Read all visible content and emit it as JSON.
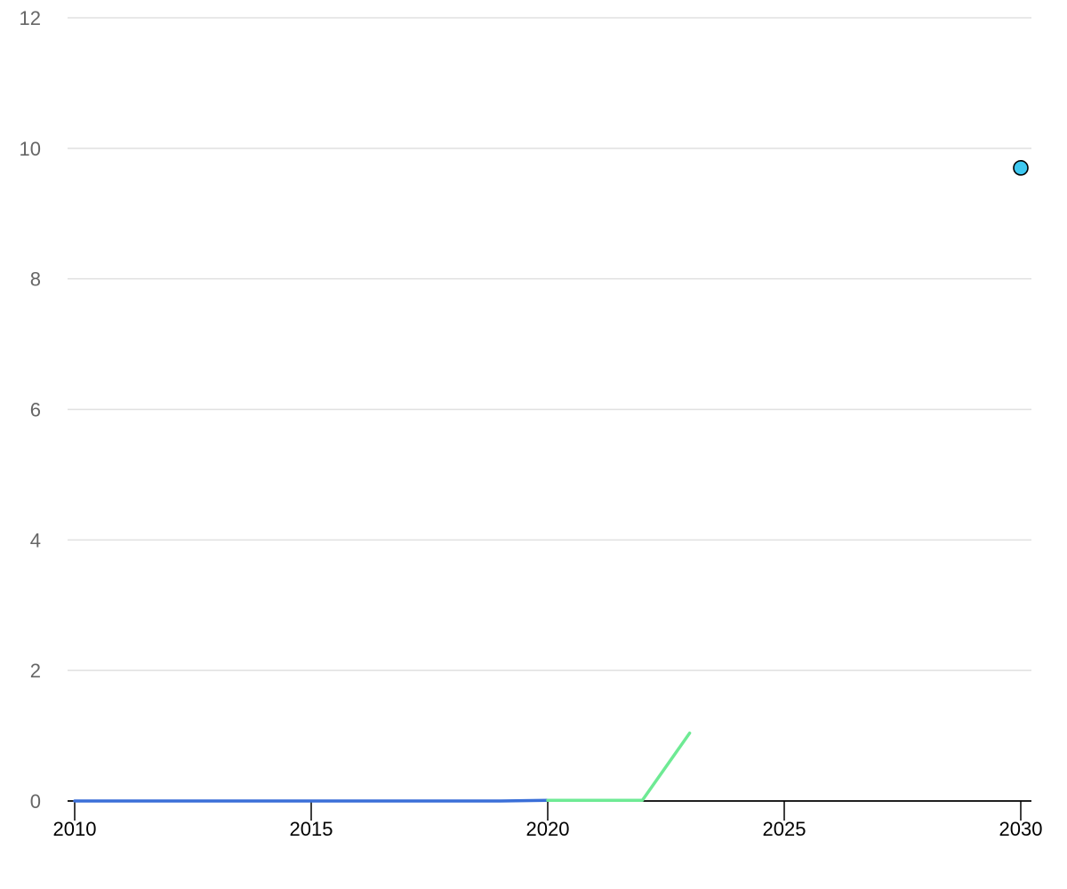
{
  "chart_data": {
    "type": "line",
    "title": "",
    "xlabel": "",
    "ylabel": "",
    "xlim": [
      2010,
      2030
    ],
    "ylim": [
      0,
      12
    ],
    "x_ticks": [
      2010,
      2015,
      2020,
      2025,
      2030
    ],
    "y_ticks": [
      0,
      2,
      4,
      6,
      8,
      10,
      12
    ],
    "grid": true,
    "legend": "none",
    "series": [
      {
        "color": "#3a6fd8",
        "style": "line",
        "x": [
          2010,
          2011,
          2012,
          2013,
          2014,
          2015,
          2016,
          2017,
          2018,
          2019,
          2020
        ],
        "y": [
          0,
          0,
          0,
          0,
          0,
          0,
          0,
          0,
          0,
          0,
          0.01
        ]
      },
      {
        "color": "#6eea94",
        "style": "line",
        "x": [
          2020,
          2021,
          2022,
          2023
        ],
        "y": [
          0.01,
          0.01,
          0.01,
          1.04
        ]
      },
      {
        "color": "#3ec8f0",
        "style": "point",
        "x": [
          2030
        ],
        "y": [
          9.7
        ]
      }
    ]
  }
}
